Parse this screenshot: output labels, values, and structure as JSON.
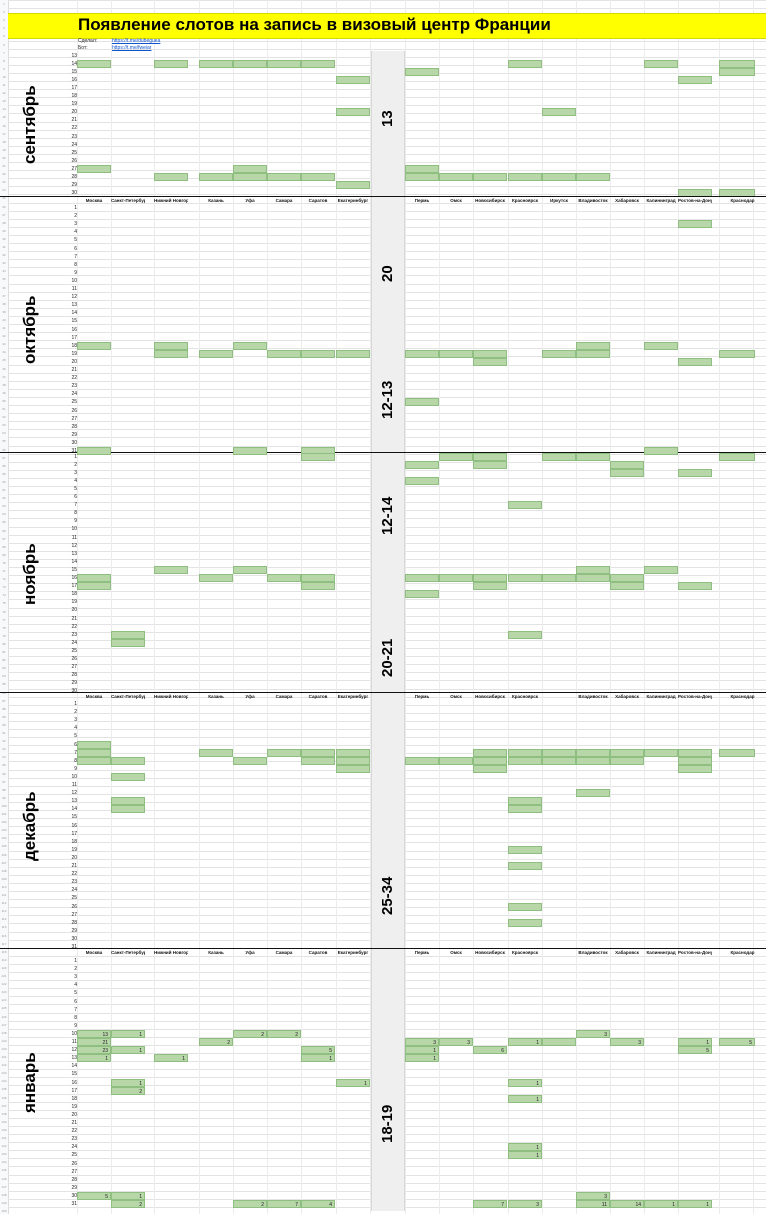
{
  "sheet": {
    "title": "Появление слотов на запись в визовый центр Франции",
    "meta": [
      {
        "label": "Сделал:",
        "link": "https://t.me/dubeguea"
      },
      {
        "label": "Бот:",
        "link": "https://t.me/fweiar"
      }
    ],
    "cities_left": [
      "Москва",
      "Санкт-Петербург",
      "Нижний Новгород",
      "Казань",
      "Уфа",
      "Самара",
      "Саратов",
      "Екатеринбург"
    ],
    "cities_right": [
      "Пермь",
      "Омск",
      "Новосибирск",
      "Красноярск",
      "Иркутск",
      "Владивосток",
      "Хабаровск",
      "Калининград",
      "Ростов-на-Дону",
      "Краснодар"
    ],
    "months": [
      {
        "name": "сентябрь",
        "start": 13,
        "days": 30,
        "header": false,
        "cells": [
          [
            14,
            0
          ],
          [
            14,
            2
          ],
          [
            14,
            3
          ],
          [
            14,
            4
          ],
          [
            14,
            5
          ],
          [
            14,
            6
          ],
          [
            15,
            8
          ],
          [
            14,
            11
          ],
          [
            14,
            15
          ],
          [
            14,
            17
          ],
          [
            15,
            17
          ],
          [
            16,
            7
          ],
          [
            16,
            16
          ],
          [
            20,
            7
          ],
          [
            20,
            12
          ],
          [
            27,
            0
          ],
          [
            27,
            4
          ],
          [
            27,
            8
          ],
          [
            28,
            2
          ],
          [
            28,
            3
          ],
          [
            28,
            4
          ],
          [
            28,
            5
          ],
          [
            28,
            6
          ],
          [
            28,
            8
          ],
          [
            28,
            9
          ],
          [
            28,
            10
          ],
          [
            28,
            11
          ],
          [
            28,
            12
          ],
          [
            28,
            13
          ],
          [
            29,
            7
          ],
          [
            30,
            16
          ],
          [
            30,
            17
          ]
        ],
        "notes": []
      },
      {
        "name": "октябрь",
        "start": 1,
        "days": 31,
        "header": true,
        "header_right_omit": [],
        "cells": [
          [
            3,
            16
          ],
          [
            18,
            0
          ],
          [
            18,
            2
          ],
          [
            18,
            4
          ],
          [
            18,
            15
          ],
          [
            18,
            13
          ],
          [
            19,
            2
          ],
          [
            19,
            3
          ],
          [
            19,
            5
          ],
          [
            19,
            6
          ],
          [
            19,
            7
          ],
          [
            19,
            8
          ],
          [
            19,
            9
          ],
          [
            19,
            10
          ],
          [
            19,
            12
          ],
          [
            19,
            13
          ],
          [
            19,
            17
          ],
          [
            20,
            10
          ],
          [
            20,
            16
          ],
          [
            25,
            8
          ],
          [
            31,
            0
          ],
          [
            31,
            4
          ],
          [
            31,
            6
          ],
          [
            31,
            15
          ]
        ],
        "notes": []
      },
      {
        "name": "ноябрь",
        "start": 1,
        "days": 30,
        "header": false,
        "cells": [
          [
            1,
            6
          ],
          [
            1,
            9
          ],
          [
            1,
            10
          ],
          [
            1,
            12
          ],
          [
            1,
            13
          ],
          [
            1,
            17
          ],
          [
            2,
            8
          ],
          [
            2,
            10
          ],
          [
            2,
            14
          ],
          [
            3,
            14
          ],
          [
            3,
            16
          ],
          [
            4,
            8
          ],
          [
            7,
            11
          ],
          [
            15,
            2
          ],
          [
            15,
            4
          ],
          [
            15,
            13
          ],
          [
            15,
            15
          ],
          [
            16,
            0
          ],
          [
            16,
            3
          ],
          [
            16,
            5
          ],
          [
            16,
            6
          ],
          [
            16,
            8
          ],
          [
            16,
            9
          ],
          [
            16,
            10
          ],
          [
            16,
            11
          ],
          [
            16,
            12
          ],
          [
            16,
            13
          ],
          [
            16,
            14
          ],
          [
            17,
            0
          ],
          [
            17,
            6
          ],
          [
            17,
            10
          ],
          [
            17,
            14
          ],
          [
            17,
            16
          ],
          [
            18,
            8
          ],
          [
            23,
            1
          ],
          [
            23,
            11
          ],
          [
            24,
            1
          ]
        ],
        "notes": []
      },
      {
        "name": "декабрь",
        "start": 1,
        "days": 31,
        "header": true,
        "header_right_omit": [
          4
        ],
        "cells": [
          [
            6,
            0
          ],
          [
            7,
            0
          ],
          [
            7,
            3
          ],
          [
            7,
            5
          ],
          [
            7,
            6
          ],
          [
            7,
            7
          ],
          [
            7,
            10
          ],
          [
            7,
            11
          ],
          [
            7,
            12
          ],
          [
            7,
            13
          ],
          [
            7,
            14
          ],
          [
            7,
            15
          ],
          [
            7,
            16
          ],
          [
            7,
            17
          ],
          [
            8,
            0
          ],
          [
            8,
            1
          ],
          [
            8,
            4
          ],
          [
            8,
            6
          ],
          [
            8,
            7
          ],
          [
            8,
            8
          ],
          [
            8,
            9
          ],
          [
            8,
            10
          ],
          [
            8,
            11
          ],
          [
            8,
            12
          ],
          [
            8,
            13
          ],
          [
            8,
            14
          ],
          [
            8,
            16
          ],
          [
            9,
            7
          ],
          [
            9,
            10
          ],
          [
            9,
            16
          ],
          [
            10,
            1
          ],
          [
            12,
            13
          ],
          [
            13,
            1
          ],
          [
            13,
            11
          ],
          [
            14,
            1
          ],
          [
            14,
            11
          ],
          [
            19,
            11
          ],
          [
            21,
            11
          ],
          [
            26,
            11
          ],
          [
            28,
            11
          ]
        ],
        "notes": []
      },
      {
        "name": "январь",
        "start": 1,
        "days": 31,
        "header": true,
        "header_right_omit": [
          4
        ],
        "cells": [
          [
            10,
            0,
            "13"
          ],
          [
            10,
            1,
            "1"
          ],
          [
            10,
            4,
            "2"
          ],
          [
            10,
            5,
            "2"
          ],
          [
            10,
            13,
            "3"
          ],
          [
            11,
            0,
            "21"
          ],
          [
            11,
            3,
            "2"
          ],
          [
            11,
            8,
            "3"
          ],
          [
            11,
            9,
            "3"
          ],
          [
            11,
            11,
            "1"
          ],
          [
            11,
            12
          ],
          [
            11,
            14,
            "3"
          ],
          [
            11,
            16,
            "1"
          ],
          [
            11,
            17,
            "5"
          ],
          [
            12,
            0,
            "23"
          ],
          [
            12,
            1,
            "1"
          ],
          [
            12,
            6,
            "5"
          ],
          [
            12,
            8,
            "1"
          ],
          [
            12,
            10,
            "6"
          ],
          [
            12,
            16,
            "5"
          ],
          [
            13,
            0,
            "1"
          ],
          [
            13,
            2,
            "1"
          ],
          [
            13,
            6,
            "1"
          ],
          [
            13,
            8,
            "1"
          ],
          [
            16,
            1,
            "1"
          ],
          [
            16,
            7,
            "1"
          ],
          [
            16,
            11,
            "1"
          ],
          [
            17,
            1,
            "2"
          ],
          [
            18,
            11,
            "1"
          ],
          [
            24,
            11,
            "1"
          ],
          [
            25,
            11,
            "1"
          ],
          [
            30,
            0,
            "5"
          ],
          [
            30,
            1,
            "1"
          ],
          [
            30,
            13,
            "3"
          ],
          [
            31,
            1,
            "2"
          ],
          [
            31,
            4,
            "2"
          ],
          [
            31,
            5,
            "7"
          ],
          [
            31,
            6,
            "4"
          ],
          [
            31,
            10,
            "7"
          ],
          [
            31,
            11,
            "3"
          ],
          [
            31,
            13,
            "11"
          ],
          [
            31,
            14,
            "14"
          ],
          [
            31,
            15,
            "1"
          ],
          [
            31,
            16,
            "1"
          ]
        ],
        "notes": []
      }
    ],
    "wait_labels": [
      {
        "text": "13",
        "from_row": 54,
        "to_row": 182
      },
      {
        "text": "20",
        "from_row": 198,
        "to_row": 348
      },
      {
        "text": "12-13",
        "from_row": 348,
        "to_row": 452
      },
      {
        "text": "12-14",
        "from_row": 460,
        "to_row": 572
      },
      {
        "text": "20-21",
        "from_row": 572,
        "to_row": 744
      },
      {
        "text": "25-34",
        "from_row": 744,
        "to_row": 1048
      },
      {
        "text": "18-19",
        "from_row": 1048,
        "to_row": 1200
      }
    ]
  }
}
